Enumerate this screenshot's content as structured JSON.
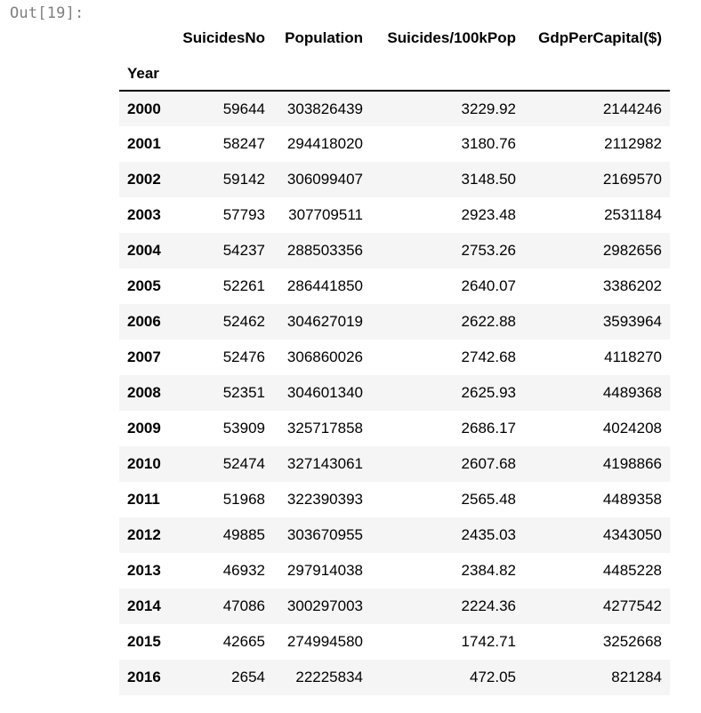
{
  "cell": {
    "output_prompt": "Out[19]:"
  },
  "dataframe": {
    "index_name": "Year",
    "columns": [
      "SuicidesNo",
      "Population",
      "Suicides/100kPop",
      "GdpPerCapital($)"
    ],
    "rows": [
      {
        "year": "2000",
        "values": [
          "59644",
          "303826439",
          "3229.92",
          "2144246"
        ]
      },
      {
        "year": "2001",
        "values": [
          "58247",
          "294418020",
          "3180.76",
          "2112982"
        ]
      },
      {
        "year": "2002",
        "values": [
          "59142",
          "306099407",
          "3148.50",
          "2169570"
        ]
      },
      {
        "year": "2003",
        "values": [
          "57793",
          "307709511",
          "2923.48",
          "2531184"
        ]
      },
      {
        "year": "2004",
        "values": [
          "54237",
          "288503356",
          "2753.26",
          "2982656"
        ]
      },
      {
        "year": "2005",
        "values": [
          "52261",
          "286441850",
          "2640.07",
          "3386202"
        ]
      },
      {
        "year": "2006",
        "values": [
          "52462",
          "304627019",
          "2622.88",
          "3593964"
        ]
      },
      {
        "year": "2007",
        "values": [
          "52476",
          "306860026",
          "2742.68",
          "4118270"
        ]
      },
      {
        "year": "2008",
        "values": [
          "52351",
          "304601340",
          "2625.93",
          "4489368"
        ]
      },
      {
        "year": "2009",
        "values": [
          "53909",
          "325717858",
          "2686.17",
          "4024208"
        ]
      },
      {
        "year": "2010",
        "values": [
          "52474",
          "327143061",
          "2607.68",
          "4198866"
        ]
      },
      {
        "year": "2011",
        "values": [
          "51968",
          "322390393",
          "2565.48",
          "4489358"
        ]
      },
      {
        "year": "2012",
        "values": [
          "49885",
          "303670955",
          "2435.03",
          "4343050"
        ]
      },
      {
        "year": "2013",
        "values": [
          "46932",
          "297914038",
          "2384.82",
          "4485228"
        ]
      },
      {
        "year": "2014",
        "values": [
          "47086",
          "300297003",
          "2224.36",
          "4277542"
        ]
      },
      {
        "year": "2015",
        "values": [
          "42665",
          "274994580",
          "1742.71",
          "3252668"
        ]
      },
      {
        "year": "2016",
        "values": [
          "2654",
          "22225834",
          "472.05",
          "821284"
        ]
      }
    ]
  },
  "colors": {
    "prompt_text": "#7f7f7f",
    "stripe_row": "#f5f5f5",
    "header_rule": "#000000"
  }
}
